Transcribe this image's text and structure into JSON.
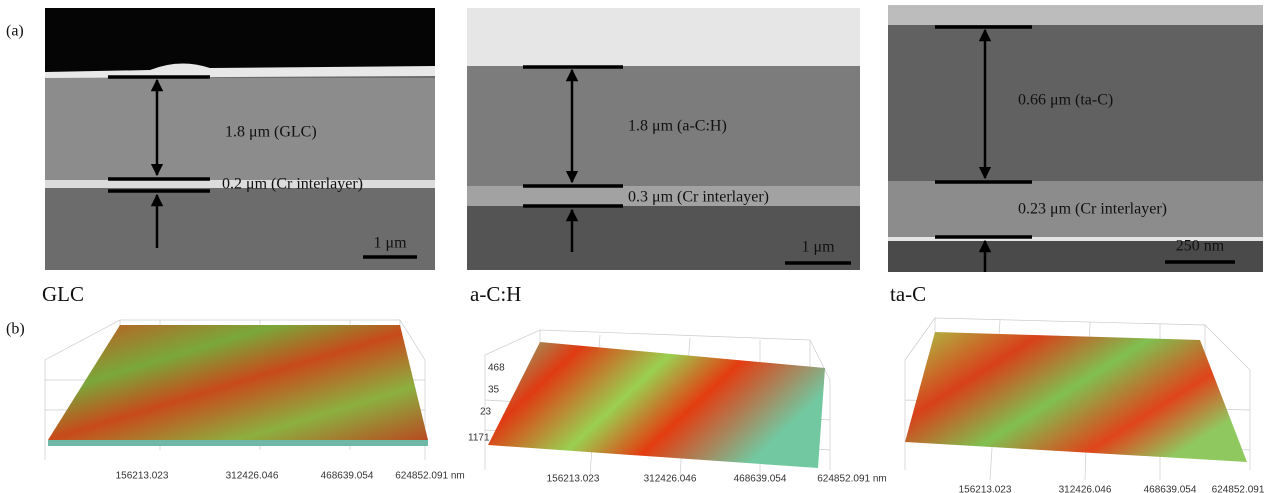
{
  "panel_labels": [
    "(a)",
    "(b)"
  ],
  "sem": [
    {
      "label": "GLC",
      "annotations": [
        "1.8 μm (GLC)",
        "0.2 μm (Cr interlayer)"
      ],
      "scale": "1 μm"
    },
    {
      "label": "a-C:H",
      "annotations": [
        "1.8 μm (a-C:H)",
        "0.3 μm (Cr interlayer)"
      ],
      "scale": "1 μm"
    },
    {
      "label": "ta-C",
      "annotations": [
        "0.66 μm (ta-C)",
        "0.23 μm (Cr interlayer)"
      ],
      "scale": "250 nm"
    }
  ],
  "surface": [
    {
      "ticks": [
        "156213.023",
        "312426.046",
        "468639.054",
        "624852.091 nm"
      ]
    },
    {
      "side_ticks": [
        "468",
        "35",
        "23",
        "1171"
      ],
      "ticks": [
        "156213.023",
        "312426.046",
        "468639.054",
        "624852.091 nm"
      ]
    },
    {
      "ticks": [
        "156213.023",
        "312426.046",
        "468639.054",
        "624852.091"
      ]
    }
  ]
}
